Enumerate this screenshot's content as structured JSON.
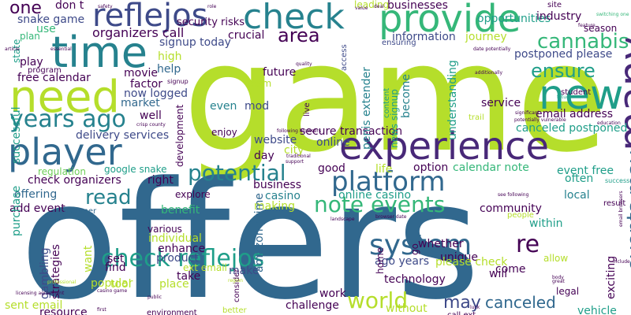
{
  "palette": {
    "lime": "#b5de2b",
    "teal": "#1f9e89",
    "navy": "#3e4a89",
    "blue": "#31688e",
    "purple": "#482878",
    "dark": "#440154",
    "green": "#35b779",
    "seafoam": "#26828e",
    "light_green": "#6ece58"
  },
  "words": [
    {
      "text": "game",
      "color": "lime"
    },
    {
      "text": "offers",
      "color": "blue"
    },
    {
      "text": "experience",
      "color": "purple"
    },
    {
      "text": "provide",
      "color": "green"
    },
    {
      "text": "reflejos",
      "color": "navy"
    },
    {
      "text": "check",
      "color": "seafoam"
    },
    {
      "text": "time",
      "color": "seafoam"
    },
    {
      "text": "need",
      "color": "lime"
    },
    {
      "text": "new",
      "color": "teal"
    },
    {
      "text": "player",
      "color": "blue"
    },
    {
      "text": "many",
      "color": "purple"
    },
    {
      "text": "years ago",
      "color": "seafoam"
    },
    {
      "text": "potential",
      "color": "seafoam"
    },
    {
      "text": "platform",
      "color": "blue"
    },
    {
      "text": "system",
      "color": "blue"
    },
    {
      "text": "check reflejos",
      "color": "teal"
    },
    {
      "text": "world",
      "color": "lime"
    },
    {
      "text": "note events",
      "color": "green"
    },
    {
      "text": "cannabis",
      "color": "green"
    },
    {
      "text": "ensure",
      "color": "teal"
    },
    {
      "text": "area",
      "color": "dark"
    },
    {
      "text": "read",
      "color": "seafoam"
    },
    {
      "text": "one",
      "color": "dark"
    },
    {
      "text": "events may",
      "color": "blue"
    },
    {
      "text": "canceled",
      "color": "blue"
    },
    {
      "text": "may",
      "color": "navy"
    },
    {
      "text": "organizers call",
      "color": "dark"
    },
    {
      "text": "snake game",
      "color": "navy"
    },
    {
      "text": "don t",
      "color": "dark"
    },
    {
      "text": "businesses",
      "color": "dark"
    },
    {
      "text": "opportunities",
      "color": "teal"
    },
    {
      "text": "information",
      "color": "navy"
    },
    {
      "text": "journey",
      "color": "lime"
    },
    {
      "text": "postponed please",
      "color": "navy"
    },
    {
      "text": "free calendar",
      "color": "dark"
    },
    {
      "text": "future",
      "color": "dark"
    },
    {
      "text": "movie",
      "color": "dark"
    },
    {
      "text": "help",
      "color": "blue"
    },
    {
      "text": "well",
      "color": "dark"
    },
    {
      "text": "factor",
      "color": "dark"
    },
    {
      "text": "now logged",
      "color": "navy"
    },
    {
      "text": "market",
      "color": "blue"
    },
    {
      "text": "even",
      "color": "seafoam"
    },
    {
      "text": "mod",
      "color": "navy"
    },
    {
      "text": "crucial",
      "color": "dark"
    },
    {
      "text": "email address",
      "color": "dark"
    },
    {
      "text": "canceled postponed",
      "color": "teal"
    },
    {
      "text": "service",
      "color": "dark"
    },
    {
      "text": "delivery services",
      "color": "navy"
    },
    {
      "text": "secure transaction",
      "color": "dark"
    },
    {
      "text": "website",
      "color": "navy"
    },
    {
      "text": "city",
      "color": "lime"
    },
    {
      "text": "online",
      "color": "navy"
    },
    {
      "text": "day",
      "color": "dark"
    },
    {
      "text": "good",
      "color": "dark"
    },
    {
      "text": "life",
      "color": "lime"
    },
    {
      "text": "option",
      "color": "dark"
    },
    {
      "text": "calendar note",
      "color": "green"
    },
    {
      "text": "event free",
      "color": "teal"
    },
    {
      "text": "often",
      "color": "teal"
    },
    {
      "text": "right",
      "color": "dark"
    },
    {
      "text": "check organizers",
      "color": "dark"
    },
    {
      "text": "offering",
      "color": "blue"
    },
    {
      "text": "add event",
      "color": "dark"
    },
    {
      "text": "business",
      "color": "dark"
    },
    {
      "text": "casino",
      "color": "seafoam"
    },
    {
      "text": "online casino",
      "color": "teal"
    },
    {
      "text": "making",
      "color": "lime"
    },
    {
      "text": "community",
      "color": "dark"
    },
    {
      "text": "local",
      "color": "seafoam"
    },
    {
      "text": "within",
      "color": "teal"
    },
    {
      "text": "whether",
      "color": "dark"
    },
    {
      "text": "unique",
      "color": "dark"
    },
    {
      "text": "benefit",
      "color": "green"
    },
    {
      "text": "individual",
      "color": "lime"
    },
    {
      "text": "enhance",
      "color": "dark"
    },
    {
      "text": "product",
      "color": "navy"
    },
    {
      "text": "take",
      "color": "dark"
    },
    {
      "text": "place",
      "color": "lime"
    },
    {
      "text": "make",
      "color": "navy"
    },
    {
      "text": "please check",
      "color": "lime"
    },
    {
      "text": "technology",
      "color": "dark"
    },
    {
      "text": "come",
      "color": "dark"
    },
    {
      "text": "ago years",
      "color": "navy"
    },
    {
      "text": "will",
      "color": "dark"
    },
    {
      "text": "work",
      "color": "dark"
    },
    {
      "text": "challenge",
      "color": "dark"
    },
    {
      "text": "sent email",
      "color": "lime"
    },
    {
      "text": "find",
      "color": "dark"
    },
    {
      "text": "set",
      "color": "dark"
    },
    {
      "text": "tool",
      "color": "lime"
    },
    {
      "text": "popular",
      "color": "lime"
    },
    {
      "text": "strategies",
      "color": "dark"
    },
    {
      "text": "gambling",
      "color": "navy"
    },
    {
      "text": "resource",
      "color": "dark"
    },
    {
      "text": "vehicle",
      "color": "teal"
    },
    {
      "text": "exciting",
      "color": "dark"
    },
    {
      "text": "state",
      "color": "teal"
    },
    {
      "text": "plan",
      "color": "green"
    },
    {
      "text": "use",
      "color": "green"
    },
    {
      "text": "play",
      "color": "dark"
    },
    {
      "text": "successful",
      "color": "teal"
    },
    {
      "text": "purchase",
      "color": "teal"
    },
    {
      "text": "high",
      "color": "lime"
    },
    {
      "text": "signup today",
      "color": "navy"
    },
    {
      "text": "google snake",
      "color": "teal"
    },
    {
      "text": "regulation",
      "color": "light_green"
    },
    {
      "text": "customer",
      "color": "blue"
    },
    {
      "text": "explore",
      "color": "dark"
    },
    {
      "text": "various",
      "color": "dark"
    },
    {
      "text": "amazon prime",
      "color": "blue"
    },
    {
      "text": "development",
      "color": "dark"
    },
    {
      "text": "security risks",
      "color": "dark"
    },
    {
      "text": "leading",
      "color": "lime"
    },
    {
      "text": "industry",
      "color": "dark"
    },
    {
      "text": "season",
      "color": "dark"
    },
    {
      "text": "site",
      "color": "dark"
    },
    {
      "text": "team",
      "color": "lime"
    },
    {
      "text": "enjoy",
      "color": "dark"
    },
    {
      "text": "penis extender",
      "color": "seafoam"
    },
    {
      "text": "news signup",
      "color": "teal"
    },
    {
      "text": "understanding",
      "color": "teal"
    },
    {
      "text": "ensuring",
      "color": "navy"
    },
    {
      "text": "become",
      "color": "seafoam"
    },
    {
      "text": "content",
      "color": "teal"
    },
    {
      "text": "live",
      "color": "dark"
    },
    {
      "text": "access",
      "color": "navy"
    },
    {
      "text": "trail",
      "color": "lime"
    },
    {
      "text": "student",
      "color": "dark"
    },
    {
      "text": "without",
      "color": "lime"
    },
    {
      "text": "call ext",
      "color": "dark"
    },
    {
      "text": "legal",
      "color": "dark"
    },
    {
      "text": "allow",
      "color": "lime"
    },
    {
      "text": "people",
      "color": "lime"
    },
    {
      "text": "result",
      "color": "dark"
    },
    {
      "text": "re",
      "color": "dark"
    },
    {
      "text": "go",
      "color": "dark"
    },
    {
      "text": "home",
      "color": "dark"
    },
    {
      "text": "want",
      "color": "lime"
    },
    {
      "text": "ext email",
      "color": "lime"
    },
    {
      "text": "program",
      "color": "dark"
    },
    {
      "text": "essential",
      "color": "dark"
    },
    {
      "text": "signup",
      "color": "dark"
    },
    {
      "text": "value",
      "color": "dark"
    },
    {
      "text": "safety",
      "color": "dark"
    },
    {
      "text": "switching one",
      "color": "green"
    },
    {
      "text": "future",
      "color": "teal"
    },
    {
      "text": "success",
      "color": "teal"
    },
    {
      "text": "include",
      "color": "dark"
    },
    {
      "text": "environment",
      "color": "dark"
    },
    {
      "text": "better",
      "color": "lime"
    },
    {
      "text": "consider",
      "color": "dark"
    },
    {
      "text": "region",
      "color": "lime"
    },
    {
      "text": "article",
      "color": "dark"
    },
    {
      "text": "deal",
      "color": "dark"
    },
    {
      "text": "role",
      "color": "dark"
    },
    {
      "text": "quality",
      "color": "dark"
    },
    {
      "text": "date potentially",
      "color": "dark"
    },
    {
      "text": "additionally",
      "color": "dark"
    },
    {
      "text": "crisp county",
      "color": "dark"
    },
    {
      "text": "following browsers",
      "color": "dark"
    },
    {
      "text": "traditional",
      "color": "dark"
    },
    {
      "text": "support",
      "color": "dark"
    },
    {
      "text": "licensing agreement",
      "color": "dark"
    },
    {
      "text": "casino game",
      "color": "dark"
    },
    {
      "text": "professional",
      "color": "lime"
    },
    {
      "text": "first",
      "color": "dark"
    },
    {
      "text": "public",
      "color": "dark"
    },
    {
      "text": "body",
      "color": "dark"
    },
    {
      "text": "great",
      "color": "dark"
    },
    {
      "text": "luck",
      "color": "dark"
    },
    {
      "text": "landscape",
      "color": "dark"
    },
    {
      "text": "browser date",
      "color": "dark"
    },
    {
      "text": "see following",
      "color": "dark"
    },
    {
      "text": "significant",
      "color": "dark"
    },
    {
      "text": "potentially vulnerable",
      "color": "dark"
    },
    {
      "text": "education",
      "color": "dark"
    },
    {
      "text": "feature",
      "color": "dark"
    },
    {
      "text": "email browsers",
      "color": "dark"
    }
  ]
}
